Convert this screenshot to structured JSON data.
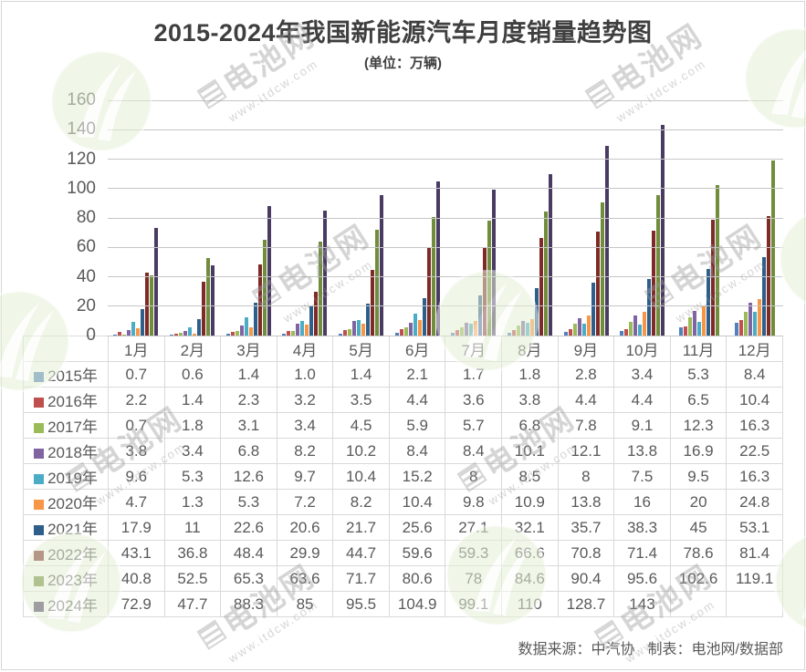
{
  "header": {
    "title": "2015-2024年我国新能源汽车月度销量趋势图",
    "subtitle": "(单位：万辆)"
  },
  "chart_data": {
    "type": "bar",
    "title": "2015-2024年我国新能源汽车月度销量趋势图",
    "unit_label": "(单位：万辆)",
    "categories": [
      "1月",
      "2月",
      "3月",
      "4月",
      "5月",
      "6月",
      "7月",
      "8月",
      "9月",
      "10月",
      "11月",
      "12月"
    ],
    "ylim": [
      0,
      160
    ],
    "yticks": [
      "160",
      "140",
      "120",
      "100",
      "80",
      "60",
      "40",
      "20",
      "0"
    ],
    "grid": "horizontal",
    "legend_position": "table-left-keys",
    "series": [
      {
        "name": "2015年",
        "color": "#4F81BD",
        "values": [
          "0.7",
          "0.6",
          "1.4",
          "1.0",
          "1.4",
          "2.1",
          "1.7",
          "1.8",
          "2.8",
          "3.4",
          "5.3",
          "8.4"
        ]
      },
      {
        "name": "2016年",
        "color": "#C0504D",
        "values": [
          "2.2",
          "1.4",
          "2.3",
          "3.2",
          "3.5",
          "4.4",
          "3.6",
          "3.8",
          "4.4",
          "4.4",
          "6.5",
          "10.4"
        ]
      },
      {
        "name": "2017年",
        "color": "#9BBB59",
        "values": [
          "0.7",
          "1.8",
          "3.1",
          "3.4",
          "4.5",
          "5.9",
          "5.7",
          "6.8",
          "7.8",
          "9.1",
          "12.3",
          "16.3"
        ]
      },
      {
        "name": "2018年",
        "color": "#8064A2",
        "values": [
          "3.8",
          "3.4",
          "6.8",
          "8.2",
          "10.2",
          "8.4",
          "8.4",
          "10.1",
          "12.1",
          "13.8",
          "16.9",
          "22.5"
        ]
      },
      {
        "name": "2019年",
        "color": "#4BACC6",
        "values": [
          "9.6",
          "5.3",
          "12.6",
          "9.7",
          "10.4",
          "15.2",
          "8",
          "8.5",
          "8",
          "7.5",
          "9.5",
          "16.3"
        ]
      },
      {
        "name": "2020年",
        "color": "#F79646",
        "values": [
          "4.7",
          "1.3",
          "5.3",
          "7.2",
          "8.2",
          "10.4",
          "9.8",
          "10.9",
          "13.8",
          "16",
          "20",
          "24.8"
        ]
      },
      {
        "name": "2021年",
        "color": "#2E5F8A",
        "values": [
          "17.9",
          "11",
          "22.6",
          "20.6",
          "21.7",
          "25.6",
          "27.1",
          "32.1",
          "35.7",
          "38.3",
          "45",
          "53.1"
        ]
      },
      {
        "name": "2022年",
        "color": "#7E2B28",
        "values": [
          "43.1",
          "36.8",
          "48.4",
          "29.9",
          "44.7",
          "59.6",
          "59.3",
          "66.6",
          "70.8",
          "71.4",
          "78.6",
          "81.4"
        ]
      },
      {
        "name": "2023年",
        "color": "#708D3C",
        "values": [
          "40.8",
          "52.5",
          "65.3",
          "63.6",
          "71.7",
          "80.6",
          "78",
          "84.6",
          "90.4",
          "95.6",
          "102.6",
          "119.1"
        ]
      },
      {
        "name": "2024年",
        "color": "#4A3B63",
        "values": [
          "72.9",
          "47.7",
          "88.3",
          "85",
          "95.5",
          "104.9",
          "99.1",
          "110",
          "128.7",
          "143",
          null,
          null
        ]
      }
    ]
  },
  "footer": {
    "source_label": "数据来源：中汽协",
    "maker_label": "制表：电池网/数据部"
  },
  "watermark": {
    "brand": "电池网",
    "url": "www.itdcw.com",
    "circle_color": "#e4efd6"
  }
}
